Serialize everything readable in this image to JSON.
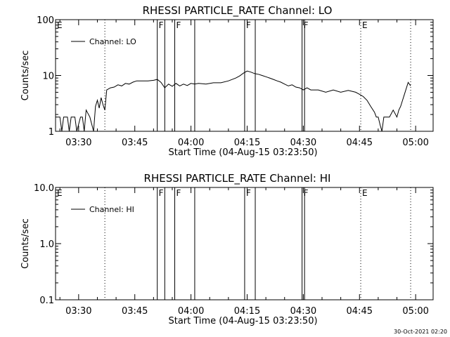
{
  "footer": {
    "timestamp": "30-Oct-2021 02:20"
  },
  "chart_data": [
    {
      "type": "line",
      "title": "RHESSI PARTICLE_RATE Channel: LO",
      "xlabel": "Start Time (04-Aug-15 03:23:50)",
      "ylabel": "Counts/sec",
      "y_scale": "log",
      "ylim": [
        1,
        100
      ],
      "y_ticks": [
        1,
        10,
        100
      ],
      "y_tick_labels": [
        "1",
        "10",
        "100"
      ],
      "xlim": [
        "03:23:50",
        "05:04:40"
      ],
      "x_ticks": [
        "03:30",
        "03:45",
        "04:00",
        "04:15",
        "04:30",
        "04:45",
        "05:00"
      ],
      "x_tick_labels": [
        "03:30",
        "03:45",
        "04:00",
        "04:15",
        "04:30",
        "04:45",
        "05:00"
      ],
      "legend": {
        "entries": [
          "Channel: LO"
        ],
        "placement": "top-left"
      },
      "markers": [
        {
          "label": "E",
          "time": "03:23:50",
          "style": "none"
        },
        {
          "label": "",
          "time": "03:37:00",
          "style": "dotted"
        },
        {
          "label": "F",
          "time": "03:51:00",
          "style": "solid"
        },
        {
          "label": "",
          "time": "03:53:00",
          "style": "solid"
        },
        {
          "label": "F",
          "time": "03:55:40",
          "style": "solid"
        },
        {
          "label": "",
          "time": "04:01:00",
          "style": "solid"
        },
        {
          "label": "F",
          "time": "04:14:20",
          "style": "solid"
        },
        {
          "label": "",
          "time": "04:17:10",
          "style": "solid"
        },
        {
          "label": "F",
          "time": "04:29:40",
          "style": "solid"
        },
        {
          "label": "",
          "time": "04:30:20",
          "style": "solid"
        },
        {
          "label": "E",
          "time": "04:45:20",
          "style": "dotted"
        },
        {
          "label": "",
          "time": "04:58:40",
          "style": "dotted"
        }
      ],
      "series": [
        {
          "name": "Channel: LO",
          "points": [
            [
              "03:23:50",
              1.8
            ],
            [
              "03:25:00",
              1.8
            ],
            [
              "03:25:30",
              1.0
            ],
            [
              "03:26:00",
              1.8
            ],
            [
              "03:27:00",
              1.8
            ],
            [
              "03:27:30",
              1.0
            ],
            [
              "03:28:00",
              1.8
            ],
            [
              "03:29:00",
              1.8
            ],
            [
              "03:29:30",
              1.0
            ],
            [
              "03:30:30",
              1.8
            ],
            [
              "03:31:00",
              1.8
            ],
            [
              "03:31:30",
              1.0
            ],
            [
              "03:32:00",
              2.4
            ],
            [
              "03:33:00",
              1.8
            ],
            [
              "03:34:00",
              1.0
            ],
            [
              "03:34:30",
              2.8
            ],
            [
              "03:35:00",
              3.6
            ],
            [
              "03:35:30",
              2.6
            ],
            [
              "03:36:00",
              4.0
            ],
            [
              "03:36:30",
              3.0
            ],
            [
              "03:37:00",
              2.4
            ],
            [
              "03:37:30",
              5.5
            ],
            [
              "03:38:30",
              6.0
            ],
            [
              "03:39:30",
              6.2
            ],
            [
              "03:40:30",
              6.8
            ],
            [
              "03:41:30",
              6.5
            ],
            [
              "03:42:30",
              7.2
            ],
            [
              "03:43:30",
              7.0
            ],
            [
              "03:44:30",
              7.6
            ],
            [
              "03:45:30",
              8.0
            ],
            [
              "03:47:00",
              8.0
            ],
            [
              "03:48:30",
              8.0
            ],
            [
              "03:50:00",
              8.2
            ],
            [
              "03:51:00",
              8.5
            ],
            [
              "03:52:00",
              7.5
            ],
            [
              "03:53:00",
              6.0
            ],
            [
              "03:54:00",
              7.0
            ],
            [
              "03:55:00",
              6.4
            ],
            [
              "03:56:00",
              7.2
            ],
            [
              "03:57:00",
              6.5
            ],
            [
              "03:58:00",
              7.0
            ],
            [
              "03:59:00",
              6.6
            ],
            [
              "04:00:00",
              7.2
            ],
            [
              "04:01:00",
              7.0
            ],
            [
              "04:02:00",
              7.2
            ],
            [
              "04:04:00",
              7.0
            ],
            [
              "04:06:00",
              7.4
            ],
            [
              "04:08:00",
              7.4
            ],
            [
              "04:10:00",
              8.0
            ],
            [
              "04:12:00",
              9.0
            ],
            [
              "04:13:00",
              9.8
            ],
            [
              "04:14:00",
              11.0
            ],
            [
              "04:15:00",
              12.0
            ],
            [
              "04:16:00",
              11.5
            ],
            [
              "04:17:00",
              10.8
            ],
            [
              "04:18:00",
              10.5
            ],
            [
              "04:19:00",
              10.0
            ],
            [
              "04:20:00",
              9.5
            ],
            [
              "04:21:00",
              9.0
            ],
            [
              "04:22:00",
              8.5
            ],
            [
              "04:23:00",
              8.0
            ],
            [
              "04:24:00",
              7.6
            ],
            [
              "04:25:00",
              7.0
            ],
            [
              "04:26:00",
              6.5
            ],
            [
              "04:27:00",
              6.8
            ],
            [
              "04:28:00",
              6.2
            ],
            [
              "04:29:00",
              6.0
            ],
            [
              "04:30:00",
              5.5
            ],
            [
              "04:31:00",
              6.0
            ],
            [
              "04:32:00",
              5.5
            ],
            [
              "04:34:00",
              5.5
            ],
            [
              "04:36:00",
              5.0
            ],
            [
              "04:38:00",
              5.5
            ],
            [
              "04:40:00",
              5.0
            ],
            [
              "04:42:00",
              5.4
            ],
            [
              "04:44:00",
              5.0
            ],
            [
              "04:45:00",
              4.6
            ],
            [
              "04:46:00",
              4.2
            ],
            [
              "04:47:00",
              3.6
            ],
            [
              "04:48:00",
              2.8
            ],
            [
              "04:49:00",
              2.2
            ],
            [
              "04:49:30",
              1.8
            ],
            [
              "04:50:00",
              1.8
            ],
            [
              "04:50:30",
              1.3
            ],
            [
              "04:51:00",
              1.0
            ],
            [
              "04:51:30",
              1.8
            ],
            [
              "04:52:00",
              1.8
            ],
            [
              "04:53:00",
              1.8
            ],
            [
              "04:54:00",
              2.4
            ],
            [
              "04:55:00",
              1.8
            ],
            [
              "04:55:30",
              2.4
            ],
            [
              "04:56:00",
              2.8
            ],
            [
              "04:57:00",
              4.6
            ],
            [
              "04:58:00",
              7.5
            ],
            [
              "04:58:40",
              6.5
            ]
          ]
        }
      ]
    },
    {
      "type": "line",
      "title": "RHESSI PARTICLE_RATE Channel: HI",
      "xlabel": "Start Time (04-Aug-15 03:23:50)",
      "ylabel": "Counts/sec",
      "y_scale": "log",
      "ylim": [
        0.1,
        10
      ],
      "y_ticks": [
        0.1,
        1,
        10
      ],
      "y_tick_labels": [
        "0.1",
        "1.0",
        "10.0"
      ],
      "xlim": [
        "03:23:50",
        "05:04:40"
      ],
      "x_ticks": [
        "03:30",
        "03:45",
        "04:00",
        "04:15",
        "04:30",
        "04:45",
        "05:00"
      ],
      "x_tick_labels": [
        "03:30",
        "03:45",
        "04:00",
        "04:15",
        "04:30",
        "04:45",
        "05:00"
      ],
      "legend": {
        "entries": [
          "Channel: HI"
        ],
        "placement": "top-left"
      },
      "markers": [
        {
          "label": "E",
          "time": "03:23:50",
          "style": "none"
        },
        {
          "label": "",
          "time": "03:37:00",
          "style": "dotted"
        },
        {
          "label": "F",
          "time": "03:51:00",
          "style": "solid"
        },
        {
          "label": "",
          "time": "03:53:00",
          "style": "solid"
        },
        {
          "label": "F",
          "time": "03:55:40",
          "style": "solid"
        },
        {
          "label": "",
          "time": "04:01:00",
          "style": "solid"
        },
        {
          "label": "F",
          "time": "04:14:20",
          "style": "solid"
        },
        {
          "label": "",
          "time": "04:17:10",
          "style": "solid"
        },
        {
          "label": "F",
          "time": "04:29:40",
          "style": "solid"
        },
        {
          "label": "",
          "time": "04:30:20",
          "style": "solid"
        },
        {
          "label": "E",
          "time": "04:45:20",
          "style": "dotted"
        },
        {
          "label": "",
          "time": "04:58:40",
          "style": "dotted"
        }
      ],
      "series": [
        {
          "name": "Channel: HI",
          "points": []
        }
      ]
    }
  ]
}
